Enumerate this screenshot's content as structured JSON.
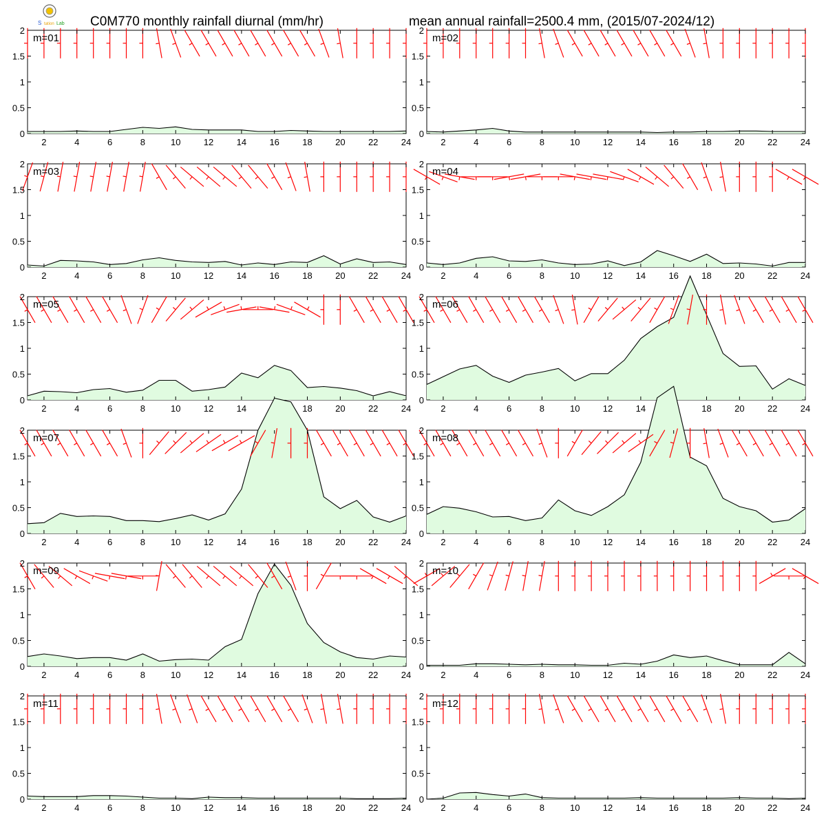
{
  "header": {
    "title_left": "C0M770 monthly rainfall diurnal (mm/hr)",
    "title_right": "mean annual rainfall=2500.4 mm, (2015/07-2024/12)"
  },
  "colors": {
    "fill": "#e0fbe0",
    "line": "#000000",
    "wind_barb": "#ff0000",
    "axis": "#000000"
  },
  "chart_data": [
    {
      "type": "area",
      "label": "m=01",
      "x": [
        1,
        2,
        3,
        4,
        5,
        6,
        7,
        8,
        9,
        10,
        11,
        12,
        13,
        14,
        15,
        16,
        17,
        18,
        19,
        20,
        21,
        22,
        23,
        24
      ],
      "values": [
        0.04,
        0.04,
        0.04,
        0.05,
        0.04,
        0.04,
        0.08,
        0.12,
        0.1,
        0.13,
        0.08,
        0.07,
        0.07,
        0.07,
        0.04,
        0.04,
        0.06,
        0.05,
        0.04,
        0.04,
        0.04,
        0.04,
        0.04,
        0.05
      ],
      "wind_dir_deg": [
        360,
        360,
        360,
        360,
        360,
        360,
        360,
        360,
        350,
        340,
        330,
        330,
        330,
        330,
        330,
        330,
        330,
        330,
        340,
        350,
        360,
        360,
        360,
        360
      ],
      "xlim": [
        1,
        24
      ],
      "ylim": [
        0,
        2
      ],
      "xticks": [
        2,
        4,
        6,
        8,
        10,
        12,
        14,
        16,
        18,
        20,
        22,
        24
      ],
      "yticks": [
        0,
        0.5,
        1,
        1.5,
        2
      ]
    },
    {
      "type": "area",
      "label": "m=02",
      "x": [
        1,
        2,
        3,
        4,
        5,
        6,
        7,
        8,
        9,
        10,
        11,
        12,
        13,
        14,
        15,
        16,
        17,
        18,
        19,
        20,
        21,
        22,
        23,
        24
      ],
      "values": [
        0.04,
        0.03,
        0.05,
        0.07,
        0.1,
        0.05,
        0.03,
        0.03,
        0.03,
        0.03,
        0.03,
        0.03,
        0.03,
        0.03,
        0.02,
        0.03,
        0.03,
        0.04,
        0.04,
        0.05,
        0.05,
        0.04,
        0.04,
        0.04
      ],
      "wind_dir_deg": [
        360,
        360,
        360,
        360,
        360,
        360,
        360,
        350,
        340,
        330,
        330,
        330,
        330,
        330,
        330,
        330,
        340,
        350,
        360,
        360,
        360,
        360,
        360,
        360
      ],
      "xlim": [
        1,
        24
      ],
      "ylim": [
        0,
        2
      ],
      "xticks": [
        2,
        4,
        6,
        8,
        10,
        12,
        14,
        16,
        18,
        20,
        22,
        24
      ],
      "yticks": [
        0,
        0.5,
        1,
        1.5,
        2
      ]
    },
    {
      "type": "area",
      "label": "m=03",
      "x": [
        1,
        2,
        3,
        4,
        5,
        6,
        7,
        8,
        9,
        10,
        11,
        12,
        13,
        14,
        15,
        16,
        17,
        18,
        19,
        20,
        21,
        22,
        23,
        24
      ],
      "values": [
        0.04,
        0.02,
        0.13,
        0.12,
        0.1,
        0.05,
        0.07,
        0.14,
        0.18,
        0.13,
        0.1,
        0.09,
        0.11,
        0.04,
        0.08,
        0.05,
        0.1,
        0.09,
        0.22,
        0.06,
        0.16,
        0.09,
        0.1,
        0.05
      ],
      "wind_dir_deg": [
        20,
        15,
        10,
        10,
        10,
        10,
        10,
        10,
        330,
        320,
        310,
        310,
        310,
        320,
        320,
        330,
        340,
        350,
        360,
        360,
        360,
        360,
        360,
        360
      ],
      "xlim": [
        1,
        24
      ],
      "ylim": [
        0,
        2
      ],
      "xticks": [
        2,
        4,
        6,
        8,
        10,
        12,
        14,
        16,
        18,
        20,
        22,
        24
      ],
      "yticks": [
        0,
        0.5,
        1,
        1.5,
        2
      ]
    },
    {
      "type": "area",
      "label": "m=04",
      "x": [
        1,
        2,
        3,
        4,
        5,
        6,
        7,
        8,
        9,
        10,
        11,
        12,
        13,
        14,
        15,
        16,
        17,
        18,
        19,
        20,
        21,
        22,
        23,
        24
      ],
      "values": [
        0.08,
        0.05,
        0.08,
        0.17,
        0.2,
        0.12,
        0.11,
        0.14,
        0.08,
        0.05,
        0.06,
        0.12,
        0.03,
        0.1,
        0.32,
        0.22,
        0.11,
        0.25,
        0.07,
        0.08,
        0.06,
        0.02,
        0.09,
        0.09
      ],
      "wind_dir_deg": [
        300,
        290,
        280,
        270,
        270,
        260,
        260,
        270,
        270,
        280,
        280,
        280,
        290,
        300,
        310,
        320,
        330,
        340,
        350,
        360,
        360,
        360,
        300,
        300
      ],
      "xlim": [
        1,
        24
      ],
      "ylim": [
        0,
        2
      ],
      "xticks": [
        2,
        4,
        6,
        8,
        10,
        12,
        14,
        16,
        18,
        20,
        22,
        24
      ],
      "yticks": [
        0,
        0.5,
        1,
        1.5,
        2
      ]
    },
    {
      "type": "area",
      "label": "m=05",
      "x": [
        1,
        2,
        3,
        4,
        5,
        6,
        7,
        8,
        9,
        10,
        11,
        12,
        13,
        14,
        15,
        16,
        17,
        18,
        19,
        20,
        21,
        22,
        23,
        24
      ],
      "values": [
        0.08,
        0.17,
        0.16,
        0.14,
        0.2,
        0.22,
        0.15,
        0.19,
        0.38,
        0.38,
        0.17,
        0.2,
        0.25,
        0.52,
        0.43,
        0.67,
        0.57,
        0.24,
        0.26,
        0.23,
        0.18,
        0.08,
        0.16,
        0.08
      ],
      "wind_dir_deg": [
        330,
        330,
        330,
        330,
        330,
        330,
        340,
        20,
        30,
        40,
        50,
        60,
        70,
        80,
        90,
        100,
        110,
        120,
        360,
        360,
        330,
        330,
        330,
        330
      ],
      "xlim": [
        1,
        24
      ],
      "ylim": [
        0,
        2
      ],
      "xticks": [
        2,
        4,
        6,
        8,
        10,
        12,
        14,
        16,
        18,
        20,
        22,
        24
      ],
      "yticks": [
        0,
        0.5,
        1,
        1.5,
        2
      ]
    },
    {
      "type": "area",
      "label": "m=06",
      "x": [
        1,
        2,
        3,
        4,
        5,
        6,
        7,
        8,
        9,
        10,
        11,
        12,
        13,
        14,
        15,
        16,
        17,
        18,
        19,
        20,
        21,
        22,
        23,
        24
      ],
      "values": [
        0.3,
        0.45,
        0.6,
        0.67,
        0.46,
        0.34,
        0.48,
        0.54,
        0.61,
        0.37,
        0.51,
        0.51,
        0.77,
        1.19,
        1.42,
        1.6,
        2.4,
        1.65,
        0.9,
        0.65,
        0.66,
        0.21,
        0.41,
        0.28
      ],
      "wind_dir_deg": [
        330,
        330,
        330,
        330,
        330,
        330,
        330,
        330,
        340,
        350,
        30,
        40,
        50,
        40,
        30,
        20,
        10,
        360,
        350,
        340,
        330,
        330,
        330,
        330
      ],
      "xlim": [
        1,
        24
      ],
      "ylim": [
        0,
        2
      ],
      "xticks": [
        2,
        4,
        6,
        8,
        10,
        12,
        14,
        16,
        18,
        20,
        22,
        24
      ],
      "yticks": [
        0,
        0.5,
        1,
        1.5,
        2
      ]
    },
    {
      "type": "area",
      "label": "m=07",
      "x": [
        1,
        2,
        3,
        4,
        5,
        6,
        7,
        8,
        9,
        10,
        11,
        12,
        13,
        14,
        15,
        16,
        17,
        18,
        19,
        20,
        21,
        22,
        23,
        24
      ],
      "values": [
        0.19,
        0.21,
        0.39,
        0.33,
        0.34,
        0.33,
        0.25,
        0.25,
        0.23,
        0.29,
        0.36,
        0.26,
        0.38,
        0.86,
        2.0,
        2.62,
        2.55,
        2.0,
        0.71,
        0.48,
        0.64,
        0.32,
        0.22,
        0.34
      ],
      "wind_dir_deg": [
        330,
        330,
        330,
        330,
        330,
        330,
        340,
        360,
        40,
        45,
        50,
        55,
        60,
        60,
        30,
        10,
        360,
        360,
        330,
        330,
        330,
        330,
        330,
        330
      ],
      "xlim": [
        1,
        24
      ],
      "ylim": [
        0,
        2
      ],
      "xticks": [
        2,
        4,
        6,
        8,
        10,
        12,
        14,
        16,
        18,
        20,
        22,
        24
      ],
      "yticks": [
        0,
        0.5,
        1,
        1.5,
        2
      ]
    },
    {
      "type": "area",
      "label": "m=08",
      "x": [
        1,
        2,
        3,
        4,
        5,
        6,
        7,
        8,
        9,
        10,
        11,
        12,
        13,
        14,
        15,
        16,
        17,
        18,
        19,
        20,
        21,
        22,
        23,
        24
      ],
      "values": [
        0.37,
        0.52,
        0.49,
        0.42,
        0.32,
        0.33,
        0.25,
        0.3,
        0.65,
        0.44,
        0.35,
        0.52,
        0.75,
        1.38,
        2.63,
        2.85,
        1.48,
        1.31,
        0.68,
        0.52,
        0.44,
        0.22,
        0.26,
        0.48
      ],
      "wind_dir_deg": [
        330,
        330,
        330,
        330,
        330,
        330,
        330,
        340,
        360,
        30,
        40,
        45,
        50,
        55,
        30,
        15,
        360,
        350,
        340,
        330,
        330,
        330,
        330,
        330
      ],
      "xlim": [
        1,
        24
      ],
      "ylim": [
        0,
        2
      ],
      "xticks": [
        2,
        4,
        6,
        8,
        10,
        12,
        14,
        16,
        18,
        20,
        22,
        24
      ],
      "yticks": [
        0,
        0.5,
        1,
        1.5,
        2
      ]
    },
    {
      "type": "area",
      "label": "m=09",
      "x": [
        1,
        2,
        3,
        4,
        5,
        6,
        7,
        8,
        9,
        10,
        11,
        12,
        13,
        14,
        15,
        16,
        17,
        18,
        19,
        20,
        21,
        22,
        23,
        24
      ],
      "values": [
        0.19,
        0.24,
        0.2,
        0.15,
        0.17,
        0.17,
        0.12,
        0.24,
        0.1,
        0.13,
        0.14,
        0.12,
        0.38,
        0.52,
        1.41,
        1.98,
        1.57,
        0.83,
        0.46,
        0.28,
        0.17,
        0.14,
        0.2,
        0.18
      ],
      "wind_dir_deg": [
        330,
        320,
        310,
        300,
        290,
        280,
        280,
        270,
        10,
        320,
        320,
        310,
        310,
        310,
        320,
        330,
        340,
        360,
        30,
        270,
        270,
        300,
        300,
        310
      ],
      "xlim": [
        1,
        24
      ],
      "ylim": [
        0,
        2
      ],
      "xticks": [
        2,
        4,
        6,
        8,
        10,
        12,
        14,
        16,
        18,
        20,
        22,
        24
      ],
      "yticks": [
        0,
        0.5,
        1,
        1.5,
        2
      ]
    },
    {
      "type": "area",
      "label": "m=10",
      "x": [
        1,
        2,
        3,
        4,
        5,
        6,
        7,
        8,
        9,
        10,
        11,
        12,
        13,
        14,
        15,
        16,
        17,
        18,
        19,
        20,
        21,
        22,
        23,
        24
      ],
      "values": [
        0.02,
        0.02,
        0.02,
        0.05,
        0.05,
        0.04,
        0.03,
        0.04,
        0.03,
        0.03,
        0.02,
        0.02,
        0.06,
        0.04,
        0.1,
        0.22,
        0.17,
        0.2,
        0.11,
        0.03,
        0.03,
        0.03,
        0.27,
        0.05
      ],
      "wind_dir_deg": [
        60,
        50,
        40,
        30,
        20,
        15,
        10,
        10,
        360,
        360,
        360,
        360,
        360,
        360,
        360,
        360,
        360,
        360,
        360,
        360,
        360,
        60,
        270,
        300
      ],
      "xlim": [
        1,
        24
      ],
      "ylim": [
        0,
        2
      ],
      "xticks": [
        2,
        4,
        6,
        8,
        10,
        12,
        14,
        16,
        18,
        20,
        22,
        24
      ],
      "yticks": [
        0,
        0.5,
        1,
        1.5,
        2
      ]
    },
    {
      "type": "area",
      "label": "m=11",
      "x": [
        1,
        2,
        3,
        4,
        5,
        6,
        7,
        8,
        9,
        10,
        11,
        12,
        13,
        14,
        15,
        16,
        17,
        18,
        19,
        20,
        21,
        22,
        23,
        24
      ],
      "values": [
        0.06,
        0.05,
        0.05,
        0.05,
        0.07,
        0.07,
        0.06,
        0.04,
        0.02,
        0.02,
        0.01,
        0.04,
        0.03,
        0.03,
        0.02,
        0.02,
        0.02,
        0.02,
        0.02,
        0.02,
        0.01,
        0.01,
        0.01,
        0.02
      ],
      "wind_dir_deg": [
        360,
        360,
        360,
        360,
        360,
        360,
        360,
        360,
        350,
        340,
        340,
        330,
        330,
        330,
        330,
        330,
        330,
        340,
        350,
        350,
        360,
        360,
        360,
        360
      ],
      "xlim": [
        1,
        24
      ],
      "ylim": [
        0,
        2
      ],
      "xticks": [
        2,
        4,
        6,
        8,
        10,
        12,
        14,
        16,
        18,
        20,
        22,
        24
      ],
      "yticks": [
        0,
        0.5,
        1,
        1.5,
        2
      ]
    },
    {
      "type": "area",
      "label": "m=12",
      "x": [
        1,
        2,
        3,
        4,
        5,
        6,
        7,
        8,
        9,
        10,
        11,
        12,
        13,
        14,
        15,
        16,
        17,
        18,
        19,
        20,
        21,
        22,
        23,
        24
      ],
      "values": [
        0.0,
        0.02,
        0.12,
        0.13,
        0.09,
        0.06,
        0.1,
        0.03,
        0.02,
        0.02,
        0.02,
        0.02,
        0.02,
        0.03,
        0.02,
        0.02,
        0.02,
        0.02,
        0.02,
        0.03,
        0.02,
        0.02,
        0.01,
        0.02
      ],
      "wind_dir_deg": [
        360,
        360,
        360,
        360,
        360,
        360,
        360,
        350,
        340,
        330,
        330,
        330,
        330,
        330,
        330,
        330,
        330,
        340,
        350,
        360,
        360,
        360,
        360,
        360
      ],
      "xlim": [
        1,
        24
      ],
      "ylim": [
        0,
        2
      ],
      "xticks": [
        2,
        4,
        6,
        8,
        10,
        12,
        14,
        16,
        18,
        20,
        22,
        24
      ],
      "yticks": [
        0,
        0.5,
        1,
        1.5,
        2
      ]
    }
  ]
}
